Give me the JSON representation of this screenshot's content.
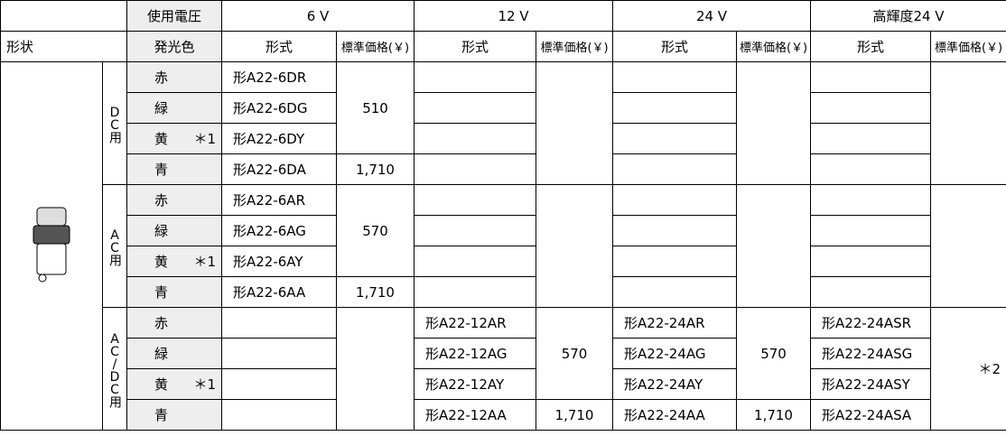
{
  "header": {
    "voltage_label": "使用電圧",
    "voltages": [
      "6 V",
      "12 V",
      "24 V",
      "高輝度24 V"
    ],
    "shape": "形状",
    "color": "発光色",
    "model": "形式",
    "price": "標準価格(￥)"
  },
  "groups": [
    {
      "label": "DC用",
      "rows": [
        {
          "color": "赤",
          "models": [
            "形A22-6DR",
            null,
            null,
            null
          ]
        },
        {
          "color": "緑",
          "models": [
            "形A22-6DG",
            null,
            null,
            null
          ]
        },
        {
          "color": "黄",
          "note": "＊1",
          "models": [
            "形A22-6DY",
            null,
            null,
            null
          ]
        },
        {
          "color": "青",
          "models": [
            "形A22-6DA",
            null,
            null,
            null
          ]
        }
      ],
      "prices": [
        [
          {
            "text": "510",
            "rows": 3
          },
          {
            "text": "1,710",
            "rows": 1
          }
        ],
        [
          {
            "rows": 4
          }
        ],
        [
          {
            "rows": 4
          }
        ],
        [
          {
            "rows": 4
          }
        ]
      ]
    },
    {
      "label": "AC用",
      "rows": [
        {
          "color": "赤",
          "models": [
            "形A22-6AR",
            null,
            null,
            null
          ]
        },
        {
          "color": "緑",
          "models": [
            "形A22-6AG",
            null,
            null,
            null
          ]
        },
        {
          "color": "黄",
          "note": "＊1",
          "models": [
            "形A22-6AY",
            null,
            null,
            null
          ]
        },
        {
          "color": "青",
          "models": [
            "形A22-6AA",
            null,
            null,
            null
          ]
        }
      ],
      "prices": [
        [
          {
            "text": "570",
            "rows": 3
          },
          {
            "text": "1,710",
            "rows": 1
          }
        ],
        [
          {
            "rows": 4
          }
        ],
        [
          {
            "rows": 4
          }
        ],
        [
          {
            "rows": 4
          }
        ]
      ]
    },
    {
      "label": "AC/DC用",
      "rows": [
        {
          "color": "赤",
          "models": [
            null,
            "形A22-12AR",
            "形A22-24AR",
            "形A22-24ASR"
          ]
        },
        {
          "color": "緑",
          "models": [
            null,
            "形A22-12AG",
            "形A22-24AG",
            "形A22-24ASG"
          ]
        },
        {
          "color": "黄",
          "note": "＊1",
          "models": [
            null,
            "形A22-12AY",
            "形A22-24AY",
            "形A22-24ASY"
          ]
        },
        {
          "color": "青",
          "models": [
            null,
            "形A22-12AA",
            "形A22-24AA",
            "形A22-24ASA"
          ]
        }
      ],
      "prices": [
        [
          {
            "rows": 4
          }
        ],
        [
          {
            "text": "570",
            "rows": 3
          },
          {
            "text": "1,710",
            "rows": 1
          }
        ],
        [
          {
            "text": "570",
            "rows": 3
          },
          {
            "text": "1,710",
            "rows": 1
          }
        ],
        [
          {
            "text": "＊2",
            "rows": 4,
            "align": "right"
          }
        ]
      ]
    }
  ]
}
